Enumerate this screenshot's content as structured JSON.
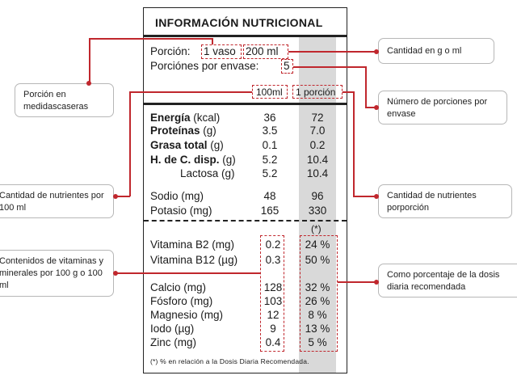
{
  "label": {
    "title": "INFORMACIÓN NUTRICIONAL",
    "portion_prefix": "Porción:",
    "portion_unit": "1 vaso",
    "portion_amount": "200 ml",
    "servings_label": "Porciónes por envase:",
    "servings_value": "5",
    "col_100ml": "100ml",
    "col_portion": "1 porción",
    "rows": [
      {
        "name_bold": "Energía",
        "unit": "(kcal)",
        "v100": "36",
        "vport": "72"
      },
      {
        "name_bold": "Proteínas",
        "unit": "(g)",
        "v100": "3.5",
        "vport": "7.0"
      },
      {
        "name_bold": "Grasa total",
        "unit": "(g)",
        "v100": "0.1",
        "vport": "0.2"
      },
      {
        "name_bold": "H. de C. disp.",
        "unit": "(g)",
        "v100": "5.2",
        "vport": "10.4"
      },
      {
        "name": "Lactosa (g)",
        "v100": "5.2",
        "vport": "10.4"
      },
      {
        "name": "Sodio (mg)",
        "v100": "48",
        "vport": "96"
      },
      {
        "name": "Potasio (mg)",
        "v100": "165",
        "vport": "330"
      }
    ],
    "asterisk": "(*)",
    "vitamins": [
      {
        "name": "Vitamina B2 (mg)",
        "v100": "0.2",
        "pct": "24 %"
      },
      {
        "name": "Vitamina B12 (µg)",
        "v100": "0.3",
        "pct": "50 %"
      }
    ],
    "minerals": [
      {
        "name": "Calcio (mg)",
        "v100": "128",
        "pct": "32 %"
      },
      {
        "name": "Fósforo (mg)",
        "v100": "103",
        "pct": "26 %"
      },
      {
        "name": "Magnesio (mg)",
        "v100": "12",
        "pct": "8 %"
      },
      {
        "name": "Iodo (µg)",
        "v100": "9",
        "pct": "13 %"
      },
      {
        "name": "Zinc (mg)",
        "v100": "0.4",
        "pct": "5 %"
      }
    ],
    "footnote": "(*) % en relación a la Dosis Diaria Recomendada."
  },
  "callouts": {
    "porcion_medidas": "Porción en medidascaseras",
    "cantidad_g_ml": "Cantidad en g o ml",
    "numero_porciones": "Número de porciones por envase",
    "cantidad_100ml": "Cantidad de nutrientes por 100 ml",
    "cantidad_porcion": "Cantidad de nutrientes porporción",
    "contenidos_vitaminas": "Contenidos de vitaminas y minerales por 100 g o 100 ml",
    "porcentaje_dosis": "Como porcentaje de la dosis diaria recomendada"
  },
  "colors": {
    "accent": "#c0272d",
    "shade": "#d9d9d9",
    "border": "#222222"
  }
}
